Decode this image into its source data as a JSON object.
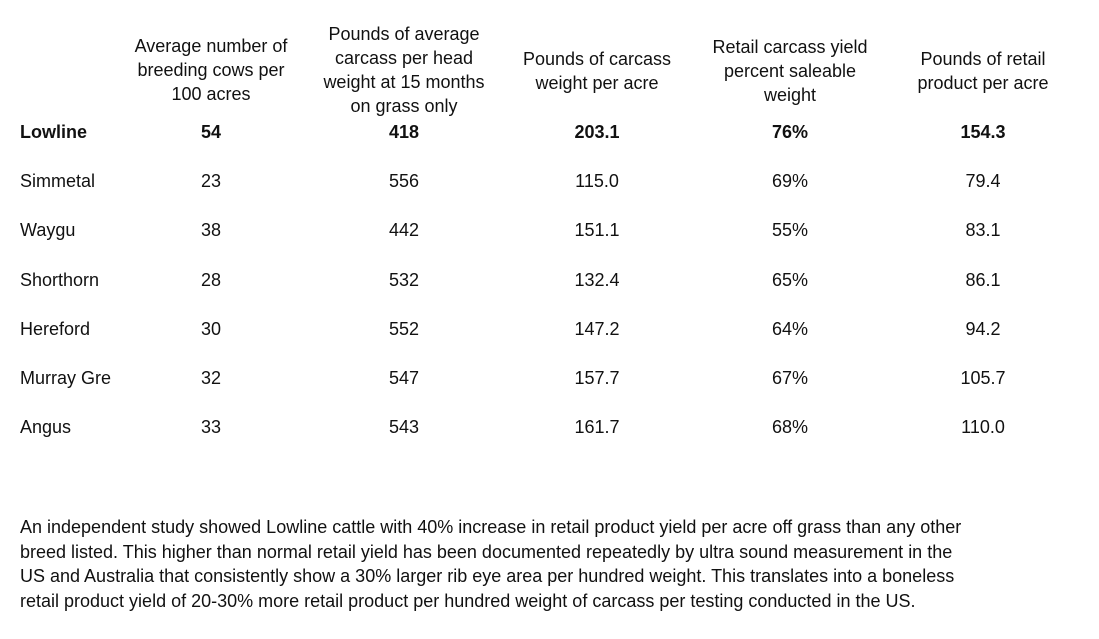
{
  "chart_data": {
    "type": "table",
    "columns": [
      "",
      "Average number of breeding cows per 100 acres",
      "Pounds of average carcass per head weight at 15 months on grass only",
      "Pounds of carcass weight per acre",
      "Retail carcass yield percent saleable weight",
      "Pounds of retail product per acre"
    ],
    "header_lines": [
      [
        "Average number of",
        "breeding cows per",
        "100 acres"
      ],
      [
        "Pounds of average",
        "carcass per head",
        "weight at 15 months",
        "on grass only"
      ],
      [
        "Pounds of carcass",
        "weight per acre"
      ],
      [
        "Retail carcass yield",
        "percent saleable",
        "weight"
      ],
      [
        "Pounds of retail",
        "product per acre"
      ]
    ],
    "rows": [
      {
        "breed": "Lowline",
        "cows_per_100_acres": "54",
        "carcass_lbs_per_head": "418",
        "carcass_lbs_per_acre": "203.1",
        "retail_yield_pct": "76%",
        "retail_lbs_per_acre": "154.3",
        "bold": true
      },
      {
        "breed": "Simmetal",
        "cows_per_100_acres": "23",
        "carcass_lbs_per_head": "556",
        "carcass_lbs_per_acre": "115.0",
        "retail_yield_pct": "69%",
        "retail_lbs_per_acre": "79.4",
        "bold": false
      },
      {
        "breed": "Waygu",
        "cows_per_100_acres": "38",
        "carcass_lbs_per_head": "442",
        "carcass_lbs_per_acre": "151.1",
        "retail_yield_pct": "55%",
        "retail_lbs_per_acre": "83.1",
        "bold": false
      },
      {
        "breed": "Shorthorn",
        "cows_per_100_acres": "28",
        "carcass_lbs_per_head": "532",
        "carcass_lbs_per_acre": "132.4",
        "retail_yield_pct": "65%",
        "retail_lbs_per_acre": "86.1",
        "bold": false
      },
      {
        "breed": "Hereford",
        "cows_per_100_acres": "30",
        "carcass_lbs_per_head": "552",
        "carcass_lbs_per_acre": "147.2",
        "retail_yield_pct": "64%",
        "retail_lbs_per_acre": "94.2",
        "bold": false
      },
      {
        "breed": "Murray Gre",
        "cows_per_100_acres": "32",
        "carcass_lbs_per_head": "547",
        "carcass_lbs_per_acre": "157.7",
        "retail_yield_pct": "67%",
        "retail_lbs_per_acre": "105.7",
        "bold": false
      },
      {
        "breed": "Angus",
        "cows_per_100_acres": "33",
        "carcass_lbs_per_head": "543",
        "carcass_lbs_per_acre": "161.7",
        "retail_yield_pct": "68%",
        "retail_lbs_per_acre": "110.0",
        "bold": false
      }
    ]
  },
  "note": {
    "lines": [
      "An independent study showed Lowline cattle with 40% increase in retail product yield per acre off grass than any other",
      "breed listed.  This higher than normal retail yield has been documented repeatedly by ultra sound measurement in the",
      "US and Australia that consistently show a 30% larger rib eye area per hundred weight.  This translates into a boneless",
      "retail product yield of 20-30% more retail product per hundred weight of carcass per testing conducted in the US."
    ]
  }
}
